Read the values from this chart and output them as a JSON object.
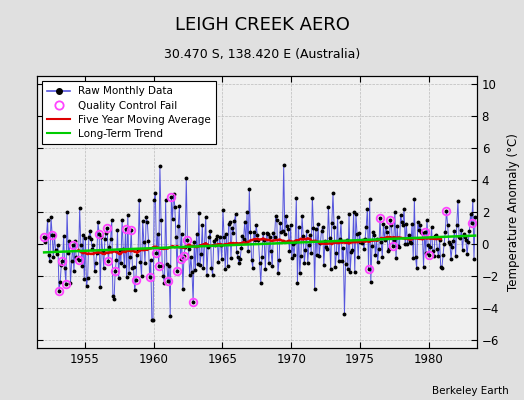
{
  "title": "LEIGH CREEK AERO",
  "subtitle": "30.470 S, 138.420 E (Australia)",
  "ylabel": "Temperature Anomaly (°C)",
  "watermark": "Berkeley Earth",
  "xlim": [
    1951.5,
    1983.5
  ],
  "ylim": [
    -6.5,
    10.5
  ],
  "yticks": [
    -6,
    -4,
    -2,
    0,
    2,
    4,
    6,
    8,
    10
  ],
  "xticks": [
    1955,
    1960,
    1965,
    1970,
    1975,
    1980
  ],
  "bg_color": "#e0e0e0",
  "plot_bg_color": "#f0f0f0",
  "line_color": "#5555dd",
  "dot_color": "#000000",
  "qc_color": "#ff44ff",
  "ma_color": "#dd0000",
  "trend_color": "#00cc00",
  "seed": 42
}
